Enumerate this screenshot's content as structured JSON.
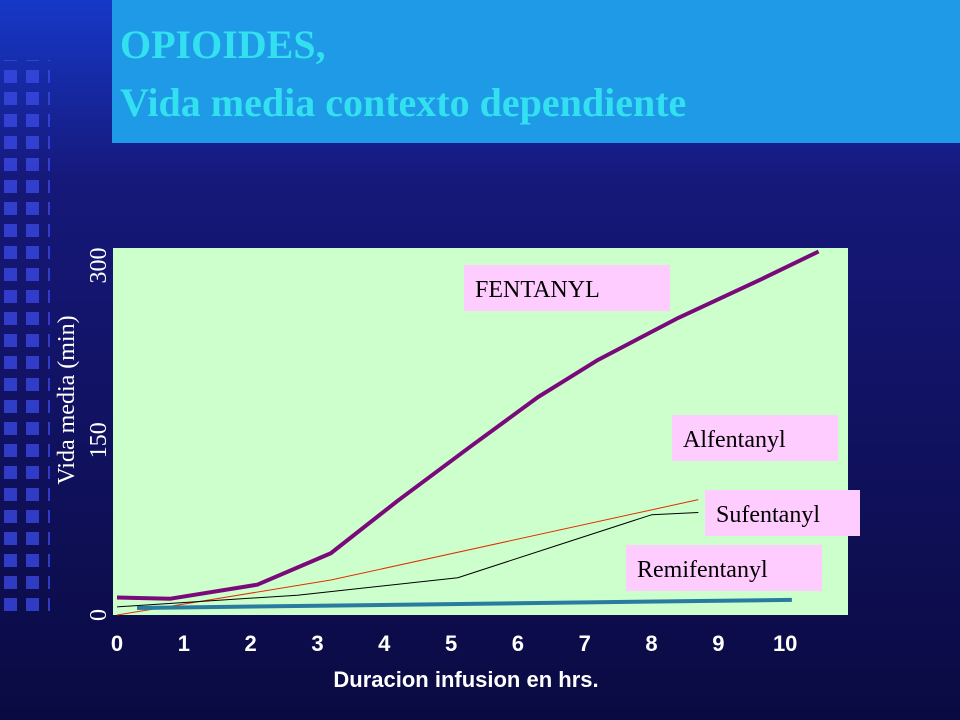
{
  "chart_data": {
    "type": "line",
    "title": [
      "OPIOIDES,",
      "Vida media contexto dependiente"
    ],
    "x_label": "Duracion infusion en hrs.",
    "y_label": "Vida media (min)",
    "xlim": [
      0,
      11
    ],
    "ylim": [
      0,
      315
    ],
    "xticks": [
      0,
      1,
      2,
      3,
      4,
      5,
      6,
      7,
      8,
      9,
      10
    ],
    "yticks": [
      0,
      150,
      300
    ],
    "series": [
      {
        "name": "FENTANYL",
        "color": "#7a0a7a",
        "width": 4,
        "x": [
          0,
          0.8,
          2.1,
          3.2,
          4.2,
          5.3,
          6.3,
          7.2,
          8.4,
          9.6,
          10.5
        ],
        "values": [
          15,
          14,
          26,
          53,
          98,
          145,
          187,
          219,
          255,
          287,
          312
        ]
      },
      {
        "name": "Alfentanyl",
        "color": "#e03000",
        "width": 1,
        "x": [
          0,
          3.2,
          8.7
        ],
        "values": [
          0,
          30,
          99
        ]
      },
      {
        "name": "Sufentanyl",
        "color": "#000000",
        "width": 1,
        "x": [
          0,
          2.7,
          5.1,
          6.6,
          8.0,
          8.7
        ],
        "values": [
          7,
          17,
          32,
          60,
          86,
          88
        ]
      },
      {
        "name": "Remifentanyl",
        "color": "#2a7ba0",
        "width": 4,
        "x": [
          0.3,
          10.1
        ],
        "values": [
          6,
          13
        ]
      }
    ]
  }
}
